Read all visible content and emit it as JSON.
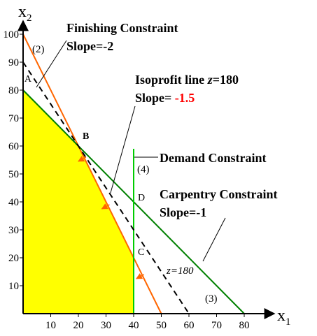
{
  "chart_data": {
    "type": "line",
    "xlabel": "x",
    "xlabel_sub": "1",
    "ylabel": "x",
    "ylabel_sub": "2",
    "xlim": [
      0,
      85
    ],
    "ylim": [
      0,
      105
    ],
    "x_ticks": [
      10,
      20,
      30,
      40,
      50,
      60,
      70,
      80
    ],
    "y_ticks": [
      10,
      20,
      30,
      40,
      50,
      60,
      70,
      80,
      90,
      100
    ],
    "feasible_region": {
      "color": "#ffff00",
      "vertices": [
        [
          0,
          0
        ],
        [
          0,
          80
        ],
        [
          20,
          60
        ],
        [
          40,
          20
        ],
        [
          40,
          0
        ]
      ]
    },
    "constraints": [
      {
        "id": "finishing",
        "color": "#ff6600",
        "points": [
          [
            0,
            100
          ],
          [
            50,
            0
          ]
        ],
        "label": "(2)"
      },
      {
        "id": "carpentry",
        "color": "#008000",
        "points": [
          [
            0,
            80
          ],
          [
            80,
            0
          ]
        ],
        "label": "(3)"
      },
      {
        "id": "demand",
        "color": "#00cc00",
        "points": [
          [
            40,
            0
          ],
          [
            40,
            59
          ]
        ],
        "label": "(4)"
      }
    ],
    "isoprofit": {
      "color": "#000000",
      "dashed": true,
      "points": [
        [
          0,
          90
        ],
        [
          60,
          0
        ]
      ],
      "label": "z=180"
    },
    "points": [
      {
        "name": "A",
        "x": 0,
        "y": 80,
        "color": "#000000"
      },
      {
        "name": "B",
        "x": 20,
        "y": 60,
        "color": "#cc0000"
      },
      {
        "name": "C",
        "x": 40,
        "y": 20,
        "color": "#000000"
      },
      {
        "name": "D",
        "x": 40,
        "y": 40,
        "color": "#000000"
      }
    ],
    "arrow_color": "#ff6600",
    "annotations": {
      "finishing_title": "Finishing Constraint",
      "finishing_slope": "Slope=-2",
      "isoprofit_title_prefix": "Isoprofit line ",
      "isoprofit_title_var": "z",
      "isoprofit_title_suffix": "=180",
      "isoprofit_slope_prefix": "Slope= ",
      "isoprofit_slope_value": "-1.5",
      "isoprofit_slope_color": "#ff0000",
      "demand_title": "Demand Constraint",
      "carpentry_title": "Carpentry Constraint",
      "carpentry_slope": "Slope=-1"
    }
  }
}
